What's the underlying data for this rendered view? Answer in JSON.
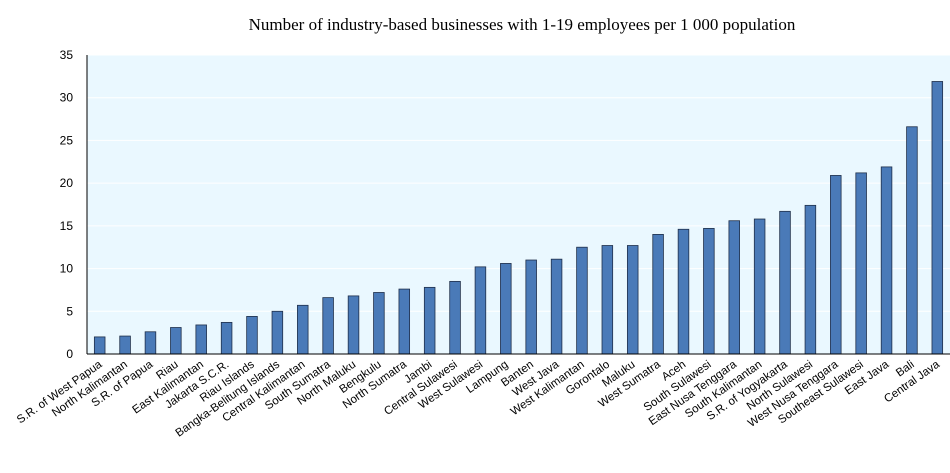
{
  "chart_data": {
    "type": "bar",
    "title": "Number of industry-based businesses with 1-19 employees per 1 000 population",
    "xlabel": "",
    "ylabel": "",
    "ylim": [
      0,
      35
    ],
    "yticks": [
      0,
      5,
      10,
      15,
      20,
      25,
      30,
      35
    ],
    "grid": true,
    "bar_color": "#4a7ab8",
    "plot_background": "#eaf8ff",
    "categories": [
      "S.R. of West Papua",
      "North Kalimantan",
      "S.R. of Papua",
      "Riau",
      "East Kalimantan",
      "Jakarta S.C.R.",
      "Riau Islands",
      "Bangka-Belitung Islands",
      "Central Kalimantan",
      "South Sumatra",
      "North Maluku",
      "Bengkulu",
      "North Sumatra",
      "Jambi",
      "Central Sulawesi",
      "West Sulawesi",
      "Lampung",
      "Banten",
      "West Java",
      "West Kalimantan",
      "Gorontalo",
      "Maluku",
      "West Sumatra",
      "Aceh",
      "South Sulawesi",
      "East Nusa Tenggara",
      "South Kalimantan",
      "S.R. of Yogyakarta",
      "North Sulawesi",
      "West Nusa Tenggara",
      "Southeast Sulawesi",
      "East Java",
      "Bali",
      "Central Java"
    ],
    "values": [
      2.0,
      2.1,
      2.6,
      3.1,
      3.4,
      3.7,
      4.4,
      5.0,
      5.7,
      6.6,
      6.8,
      7.2,
      7.6,
      7.8,
      8.5,
      10.2,
      10.6,
      11.0,
      11.1,
      12.5,
      12.7,
      12.7,
      14.0,
      14.6,
      14.7,
      15.6,
      15.8,
      16.7,
      17.4,
      20.9,
      21.2,
      21.9,
      26.6,
      31.9
    ]
  }
}
